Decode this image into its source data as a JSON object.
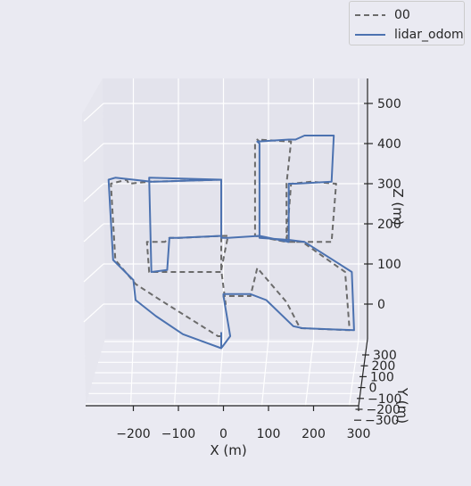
{
  "chart_data": {
    "type": "line",
    "projection": "3d",
    "title": "",
    "xlabel": "X (m)",
    "ylabel": "Y (m)",
    "zlabel": "Z (m)",
    "x_ticks": [
      "−200",
      "−100",
      "0",
      "100",
      "200",
      "300"
    ],
    "y_ticks": [
      "300",
      "200",
      "100",
      "0",
      "−100",
      "−200",
      "−300"
    ],
    "z_ticks": [
      "500",
      "400",
      "300",
      "200",
      "100",
      "0"
    ],
    "grid": true,
    "legend_position": "top-right",
    "colors": {
      "ground_truth": "#6b6b6b",
      "estimate": "#4c72b0",
      "grid": "#ffffff",
      "pane": "#e3e3ec"
    },
    "series": [
      {
        "name": "00",
        "style": "dashed",
        "x": [
          -5,
          -12,
          -140,
          -195,
          -240,
          -250,
          -215,
          -210,
          -165,
          -160,
          -165,
          -5,
          -5,
          -165,
          -170,
          -130,
          -120,
          -100,
          0,
          10,
          -5,
          5,
          0,
          60,
          75,
          140,
          170,
          280,
          270,
          175,
          140,
          70,
          70,
          80,
          75,
          150,
          140,
          140,
          175,
          240,
          250,
          195,
          150,
          140,
          75
        ],
        "z": [
          -80,
          -80,
          10,
          50,
          110,
          300,
          310,
          300,
          305,
          305,
          305,
          310,
          80,
          80,
          155,
          155,
          165,
          165,
          170,
          170,
          85,
          0,
          20,
          20,
          90,
          5,
          -60,
          -65,
          80,
          155,
          155,
          170,
          400,
          405,
          410,
          405,
          300,
          155,
          155,
          155,
          300,
          305,
          300,
          155,
          170
        ]
      },
      {
        "name": "lidar_odom",
        "style": "solid",
        "x": [
          -5,
          -5,
          15,
          0,
          0,
          60,
          95,
          155,
          175,
          290,
          285,
          180,
          145,
          80,
          80,
          75,
          145,
          160,
          180,
          245,
          240,
          160,
          145,
          145,
          80,
          10,
          -5,
          -5,
          -165,
          -160,
          -125,
          -120,
          -100,
          -5,
          -5,
          -155,
          -160,
          -240,
          -255,
          -245,
          -200,
          -195,
          -150,
          -90,
          -5
        ],
        "z": [
          -70,
          -110,
          -80,
          20,
          25,
          25,
          10,
          -55,
          -60,
          -65,
          80,
          155,
          160,
          165,
          400,
          405,
          410,
          410,
          420,
          420,
          305,
          300,
          300,
          155,
          170,
          165,
          165,
          310,
          315,
          80,
          85,
          165,
          165,
          170,
          310,
          305,
          305,
          315,
          310,
          110,
          60,
          10,
          -30,
          -75,
          -110
        ]
      }
    ]
  }
}
